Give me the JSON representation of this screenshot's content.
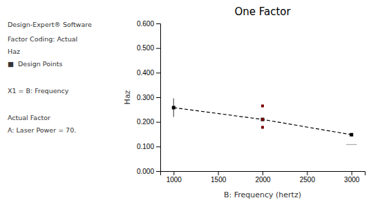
{
  "chart_data": {
    "type": "line",
    "title": "One Factor",
    "x_label": "B: Frequency (hertz)",
    "y_label": "Haz",
    "xlim": [
      850,
      3150
    ],
    "xticks": [
      1000,
      1500,
      2000,
      2500,
      3000
    ],
    "ylim": [
      0.0,
      0.6
    ],
    "yticks": [
      {
        "value": 0.0,
        "label": "0.000"
      },
      {
        "value": 0.1,
        "label": "0.100"
      },
      {
        "value": 0.2,
        "label": "0.200"
      },
      {
        "value": 0.3,
        "label": "0.300"
      },
      {
        "value": 0.4,
        "label": "0.400"
      },
      {
        "value": 0.5,
        "label": "0.500"
      },
      {
        "value": 0.6,
        "label": "0.600"
      }
    ],
    "grid": false,
    "series": [
      {
        "type": "line",
        "line_style": "dashed",
        "marker": "square",
        "color": "black",
        "x": [
          1000,
          2000,
          3000
        ],
        "values": [
          0.258,
          0.21,
          0.148
        ],
        "error": [
          0.038,
          null,
          null
        ]
      },
      {
        "type": "scatter",
        "marker": "square",
        "color": "#7a0000",
        "x": [
          2000,
          2000,
          2000
        ],
        "values": [
          0.265,
          0.21,
          0.178
        ]
      },
      {
        "type": "line",
        "line_style": "solid",
        "color": "#aaaaaa",
        "x": [
          2940,
          3060
        ],
        "values": [
          0.108,
          0.108
        ]
      }
    ],
    "annotations": [
      "Design-Expert® Software",
      "Factor Coding: Actual",
      "Haz",
      "■  Design Points",
      "X1 = B: Frequency",
      "Actual Factor",
      "A: Laser Power = 70."
    ]
  }
}
